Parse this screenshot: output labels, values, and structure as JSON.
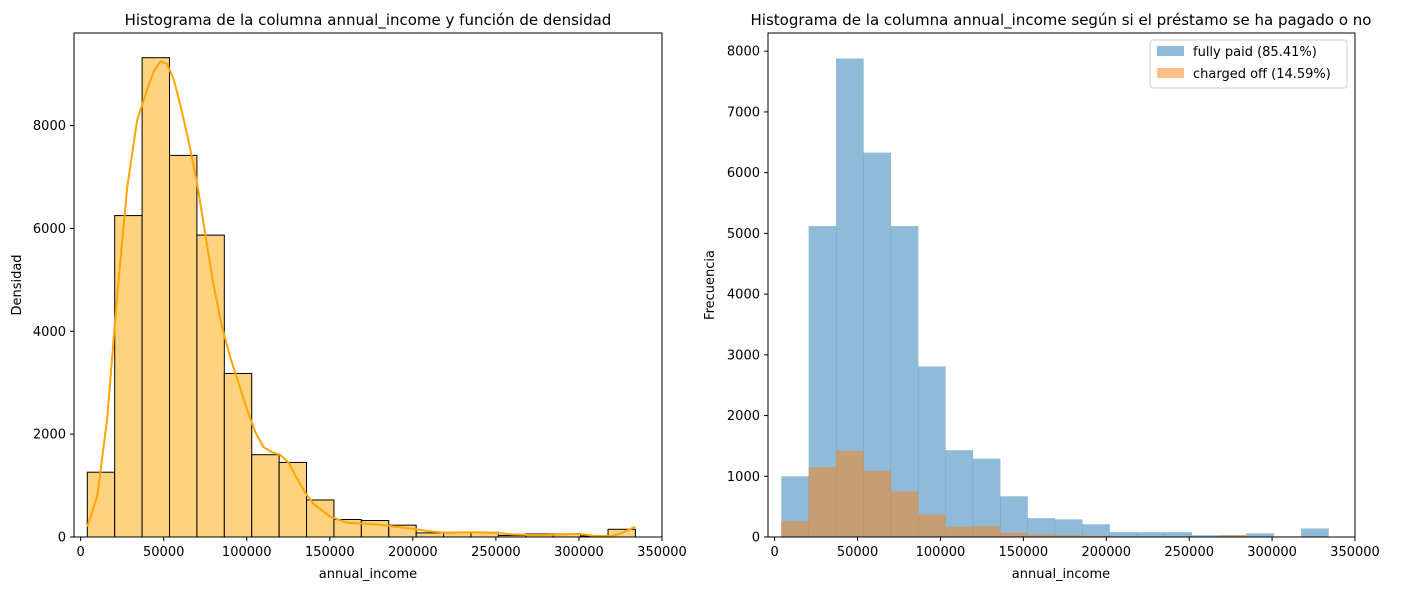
{
  "chart_data": [
    {
      "type": "bar",
      "title": "Histograma de la columna annual_income y función de densidad",
      "xlabel": "annual_income",
      "ylabel": "Densidad",
      "xlim": [
        -4000,
        350000
      ],
      "ylim": [
        0,
        9800
      ],
      "xticks": [
        0,
        50000,
        100000,
        150000,
        200000,
        250000,
        300000,
        350000
      ],
      "yticks": [
        0,
        2000,
        4000,
        6000,
        8000
      ],
      "bin_edges": [
        4000,
        20500,
        37000,
        53500,
        70000,
        86500,
        103000,
        119500,
        136000,
        152500,
        169000,
        185500,
        202000,
        218500,
        235000,
        251500,
        268000,
        284500,
        301000,
        317500,
        334000
      ],
      "values": [
        1260,
        6250,
        9320,
        7420,
        5870,
        3180,
        1600,
        1450,
        720,
        340,
        320,
        230,
        80,
        90,
        90,
        30,
        60,
        60,
        20,
        150
      ],
      "bar_color": "#FFD27F",
      "edge_color": "#000000",
      "kde": {
        "color": "#FFA500",
        "x": [
          4000,
          10000,
          16000,
          22000,
          28000,
          34000,
          40000,
          44000,
          48000,
          52000,
          56000,
          60000,
          65000,
          70000,
          75000,
          80000,
          85000,
          90000,
          95000,
          100000,
          105000,
          110000,
          115000,
          120000,
          125000,
          130000,
          135000,
          140000,
          150000,
          160000,
          170000,
          180000,
          190000,
          200000,
          210000,
          220000,
          230000,
          240000,
          250000,
          260000,
          270000,
          280000,
          290000,
          300000,
          310000,
          320000,
          326000,
          334000
        ],
        "y": [
          200,
          800,
          2300,
          4700,
          6800,
          8100,
          8700,
          9050,
          9250,
          9200,
          8900,
          8400,
          7700,
          6900,
          5900,
          4900,
          4100,
          3500,
          3000,
          2500,
          2050,
          1750,
          1650,
          1600,
          1450,
          1150,
          870,
          650,
          400,
          280,
          260,
          240,
          200,
          160,
          110,
          80,
          90,
          90,
          80,
          50,
          40,
          40,
          50,
          60,
          20,
          20,
          80,
          200
        ]
      }
    },
    {
      "type": "bar",
      "title": "Histograma de la columna annual_income según si el préstamo se ha pagado o no",
      "xlabel": "annual_income",
      "ylabel": "Frecuencia",
      "xlim": [
        -4000,
        350000
      ],
      "ylim": [
        0,
        8300
      ],
      "xticks": [
        0,
        50000,
        100000,
        150000,
        200000,
        250000,
        300000,
        350000
      ],
      "yticks": [
        0,
        1000,
        2000,
        3000,
        4000,
        5000,
        6000,
        7000,
        8000
      ],
      "bin_edges": [
        4000,
        20500,
        37000,
        53500,
        70000,
        86500,
        103000,
        119500,
        136000,
        152500,
        169000,
        185500,
        202000,
        218500,
        235000,
        251500,
        268000,
        284500,
        301000,
        317500,
        334000
      ],
      "legend_position": "upper-right",
      "series": [
        {
          "name": "fully paid (85.41%)",
          "color": "#1f77b4",
          "opacity": 0.5,
          "values": [
            1000,
            5120,
            7880,
            6330,
            5120,
            2810,
            1430,
            1290,
            670,
            310,
            290,
            210,
            80,
            80,
            80,
            30,
            30,
            60,
            10,
            140
          ]
        },
        {
          "name": "charged off (14.59%)",
          "color": "#ff7f0e",
          "opacity": 0.5,
          "values": [
            260,
            1150,
            1420,
            1090,
            750,
            370,
            170,
            180,
            70,
            40,
            30,
            20,
            10,
            10,
            10,
            5,
            30,
            10,
            5,
            10
          ]
        }
      ]
    }
  ]
}
